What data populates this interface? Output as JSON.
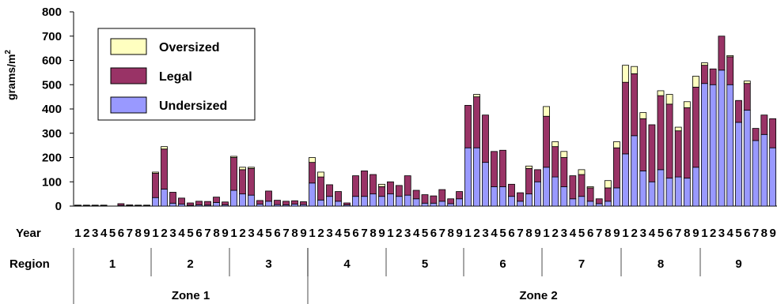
{
  "chart_data": {
    "type": "bar",
    "stacked": true,
    "ylabel_main": "grams/m",
    "ylabel_sup": "2",
    "ylim": [
      0,
      800
    ],
    "yticks": [
      "0",
      "100",
      "200",
      "300",
      "400",
      "500",
      "600",
      "700",
      "800"
    ],
    "ytick_values": [
      0,
      100,
      200,
      300,
      400,
      500,
      600,
      700,
      800
    ],
    "grid": false,
    "legend_position": "top-left",
    "row_labels": {
      "year": "Year",
      "region": "Region"
    },
    "series": [
      {
        "name": "Undersized",
        "color": "#9999ff",
        "key": "undersized"
      },
      {
        "name": "Legal",
        "color": "#993366",
        "key": "legal"
      },
      {
        "name": "Oversized",
        "color": "#ffffc0",
        "key": "oversized"
      }
    ],
    "legend_order": [
      "Oversized",
      "Legal",
      "Undersized"
    ],
    "zones": [
      {
        "label": "Zone 1",
        "regions": [
          "1",
          "2",
          "3"
        ]
      },
      {
        "label": "Zone 2",
        "regions": [
          "4",
          "5",
          "6",
          "7",
          "8",
          "9"
        ]
      }
    ],
    "regions": [
      {
        "label": "1",
        "bars": [
          {
            "year": "1",
            "undersized": 2,
            "legal": 2,
            "oversized": 0
          },
          {
            "year": "2",
            "undersized": 2,
            "legal": 2,
            "oversized": 0
          },
          {
            "year": "3",
            "undersized": 2,
            "legal": 2,
            "oversized": 0
          },
          {
            "year": "4",
            "undersized": 2,
            "legal": 2,
            "oversized": 0
          },
          {
            "year": "5",
            "undersized": 0,
            "legal": 0,
            "oversized": 0
          },
          {
            "year": "6",
            "undersized": 3,
            "legal": 7,
            "oversized": 0
          },
          {
            "year": "7",
            "undersized": 2,
            "legal": 3,
            "oversized": 0
          },
          {
            "year": "8",
            "undersized": 2,
            "legal": 2,
            "oversized": 0
          },
          {
            "year": "9",
            "undersized": 2,
            "legal": 2,
            "oversized": 0
          }
        ]
      },
      {
        "label": "2",
        "bars": [
          {
            "year": "1",
            "undersized": 35,
            "legal": 100,
            "oversized": 5
          },
          {
            "year": "2",
            "undersized": 70,
            "legal": 165,
            "oversized": 10
          },
          {
            "year": "3",
            "undersized": 12,
            "legal": 45,
            "oversized": 0
          },
          {
            "year": "4",
            "undersized": 8,
            "legal": 25,
            "oversized": 0
          },
          {
            "year": "5",
            "undersized": 3,
            "legal": 10,
            "oversized": 0
          },
          {
            "year": "6",
            "undersized": 5,
            "legal": 15,
            "oversized": 0
          },
          {
            "year": "7",
            "undersized": 4,
            "legal": 15,
            "oversized": 0
          },
          {
            "year": "8",
            "undersized": 15,
            "legal": 22,
            "oversized": 0
          },
          {
            "year": "9",
            "undersized": 5,
            "legal": 12,
            "oversized": 0
          }
        ]
      },
      {
        "label": "3",
        "bars": [
          {
            "year": "1",
            "undersized": 65,
            "legal": 135,
            "oversized": 5
          },
          {
            "year": "2",
            "undersized": 50,
            "legal": 100,
            "oversized": 10
          },
          {
            "year": "3",
            "undersized": 45,
            "legal": 110,
            "oversized": 5
          },
          {
            "year": "4",
            "undersized": 8,
            "legal": 15,
            "oversized": 0
          },
          {
            "year": "5",
            "undersized": 20,
            "legal": 42,
            "oversized": 0
          },
          {
            "year": "6",
            "undersized": 6,
            "legal": 18,
            "oversized": 0
          },
          {
            "year": "7",
            "undersized": 5,
            "legal": 15,
            "oversized": 0
          },
          {
            "year": "8",
            "undersized": 8,
            "legal": 14,
            "oversized": 0
          },
          {
            "year": "9",
            "undersized": 6,
            "legal": 12,
            "oversized": 0
          }
        ]
      },
      {
        "label": "4",
        "bars": [
          {
            "year": "1",
            "undersized": 95,
            "legal": 85,
            "oversized": 20
          },
          {
            "year": "2",
            "undersized": 25,
            "legal": 95,
            "oversized": 20
          },
          {
            "year": "3",
            "undersized": 40,
            "legal": 48,
            "oversized": 0
          },
          {
            "year": "4",
            "undersized": 20,
            "legal": 40,
            "oversized": 0
          },
          {
            "year": "5",
            "undersized": 5,
            "legal": 8,
            "oversized": 0
          },
          {
            "year": "6",
            "undersized": 40,
            "legal": 85,
            "oversized": 0
          },
          {
            "year": "7",
            "undersized": 40,
            "legal": 105,
            "oversized": 0
          },
          {
            "year": "8",
            "undersized": 50,
            "legal": 80,
            "oversized": 0
          },
          {
            "year": "9",
            "undersized": 40,
            "legal": 40,
            "oversized": 10
          }
        ]
      },
      {
        "label": "5",
        "bars": [
          {
            "year": "1",
            "undersized": 50,
            "legal": 50,
            "oversized": 0
          },
          {
            "year": "2",
            "undersized": 40,
            "legal": 45,
            "oversized": 0
          },
          {
            "year": "3",
            "undersized": 45,
            "legal": 80,
            "oversized": 0
          },
          {
            "year": "4",
            "undersized": 30,
            "legal": 35,
            "oversized": 0
          },
          {
            "year": "5",
            "undersized": 12,
            "legal": 35,
            "oversized": 0
          },
          {
            "year": "6",
            "undersized": 12,
            "legal": 30,
            "oversized": 0
          },
          {
            "year": "7",
            "undersized": 20,
            "legal": 48,
            "oversized": 0
          },
          {
            "year": "8",
            "undersized": 10,
            "legal": 20,
            "oversized": 0
          },
          {
            "year": "9",
            "undersized": 30,
            "legal": 30,
            "oversized": 0
          }
        ]
      },
      {
        "label": "6",
        "bars": [
          {
            "year": "1",
            "undersized": 240,
            "legal": 175,
            "oversized": 0
          },
          {
            "year": "2",
            "undersized": 240,
            "legal": 210,
            "oversized": 10
          },
          {
            "year": "3",
            "undersized": 180,
            "legal": 195,
            "oversized": 0
          },
          {
            "year": "4",
            "undersized": 80,
            "legal": 145,
            "oversized": 0
          },
          {
            "year": "5",
            "undersized": 80,
            "legal": 150,
            "oversized": 0
          },
          {
            "year": "6",
            "undersized": 40,
            "legal": 50,
            "oversized": 0
          },
          {
            "year": "7",
            "undersized": 20,
            "legal": 35,
            "oversized": 0
          },
          {
            "year": "8",
            "undersized": 50,
            "legal": 105,
            "oversized": 10
          },
          {
            "year": "9",
            "undersized": 100,
            "legal": 50,
            "oversized": 0
          }
        ]
      },
      {
        "label": "7",
        "bars": [
          {
            "year": "1",
            "undersized": 160,
            "legal": 210,
            "oversized": 40
          },
          {
            "year": "2",
            "undersized": 120,
            "legal": 125,
            "oversized": 20
          },
          {
            "year": "3",
            "undersized": 80,
            "legal": 120,
            "oversized": 25
          },
          {
            "year": "4",
            "undersized": 30,
            "legal": 95,
            "oversized": 0
          },
          {
            "year": "5",
            "undersized": 40,
            "legal": 90,
            "oversized": 20
          },
          {
            "year": "6",
            "undersized": 20,
            "legal": 55,
            "oversized": 5
          },
          {
            "year": "7",
            "undersized": 10,
            "legal": 20,
            "oversized": 0
          },
          {
            "year": "8",
            "undersized": 20,
            "legal": 55,
            "oversized": 30
          },
          {
            "year": "9",
            "undersized": 75,
            "legal": 165,
            "oversized": 25
          }
        ]
      },
      {
        "label": "8",
        "bars": [
          {
            "year": "1",
            "undersized": 215,
            "legal": 295,
            "oversized": 70
          },
          {
            "year": "2",
            "undersized": 290,
            "legal": 255,
            "oversized": 30
          },
          {
            "year": "3",
            "undersized": 145,
            "legal": 215,
            "oversized": 25
          },
          {
            "year": "4",
            "undersized": 100,
            "legal": 235,
            "oversized": 0
          },
          {
            "year": "5",
            "undersized": 150,
            "legal": 305,
            "oversized": 20
          },
          {
            "year": "6",
            "undersized": 115,
            "legal": 305,
            "oversized": 40
          },
          {
            "year": "7",
            "undersized": 120,
            "legal": 190,
            "oversized": 15
          },
          {
            "year": "8",
            "undersized": 115,
            "legal": 290,
            "oversized": 25
          },
          {
            "year": "9",
            "undersized": 160,
            "legal": 330,
            "oversized": 45
          }
        ]
      },
      {
        "label": "9",
        "bars": [
          {
            "year": "1",
            "undersized": 505,
            "legal": 75,
            "oversized": 10
          },
          {
            "year": "2",
            "undersized": 500,
            "legal": 65,
            "oversized": 0
          },
          {
            "year": "3",
            "undersized": 560,
            "legal": 140,
            "oversized": 0
          },
          {
            "year": "4",
            "undersized": 500,
            "legal": 115,
            "oversized": 5
          },
          {
            "year": "5",
            "undersized": 345,
            "legal": 90,
            "oversized": 0
          },
          {
            "year": "6",
            "undersized": 395,
            "legal": 110,
            "oversized": 10
          },
          {
            "year": "7",
            "undersized": 270,
            "legal": 50,
            "oversized": 0
          },
          {
            "year": "8",
            "undersized": 295,
            "legal": 80,
            "oversized": 0
          },
          {
            "year": "9",
            "undersized": 240,
            "legal": 120,
            "oversized": 0
          }
        ]
      }
    ]
  }
}
